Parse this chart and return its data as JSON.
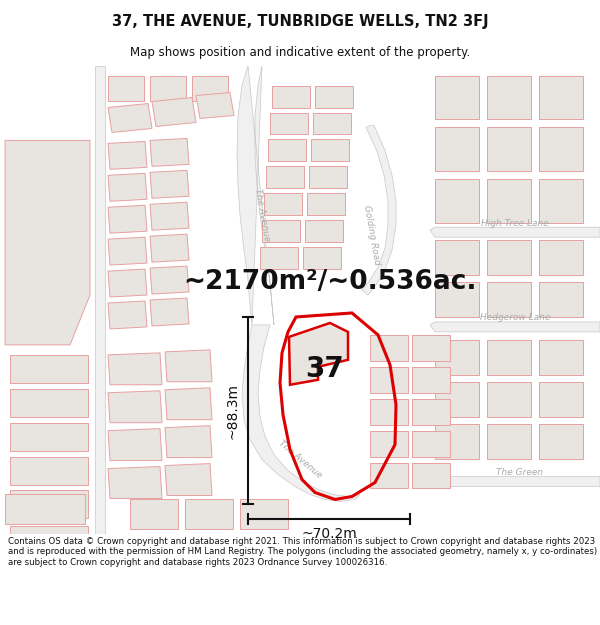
{
  "title": "37, THE AVENUE, TUNBRIDGE WELLS, TN2 3FJ",
  "subtitle": "Map shows position and indicative extent of the property.",
  "area_text": "~2170m²/~0.536ac.",
  "label_37": "37",
  "dim_height": "~88.3m",
  "dim_width": "~70.2m",
  "footer": "Contains OS data © Crown copyright and database right 2021. This information is subject to Crown copyright and database rights 2023 and is reproduced with the permission of HM Land Registry. The polygons (including the associated geometry, namely x, y co-ordinates) are subject to Crown copyright and database rights 2023 Ordnance Survey 100026316.",
  "bg_color": "#ffffff",
  "map_bg": "#ffffff",
  "building_fill": "#e8e4e0",
  "building_edge": "#e8a0a0",
  "road_line_color": "#c8c8c8",
  "highlight_color": "#dd0000",
  "dim_color": "#111111",
  "text_color": "#111111",
  "road_label_color": "#aaaaaa",
  "title_fontsize": 10.5,
  "subtitle_fontsize": 8.5,
  "area_fontsize": 19,
  "label_fontsize": 20,
  "dim_fontsize": 10,
  "footer_fontsize": 6.2,
  "footer_bg": "#f5f0ea"
}
